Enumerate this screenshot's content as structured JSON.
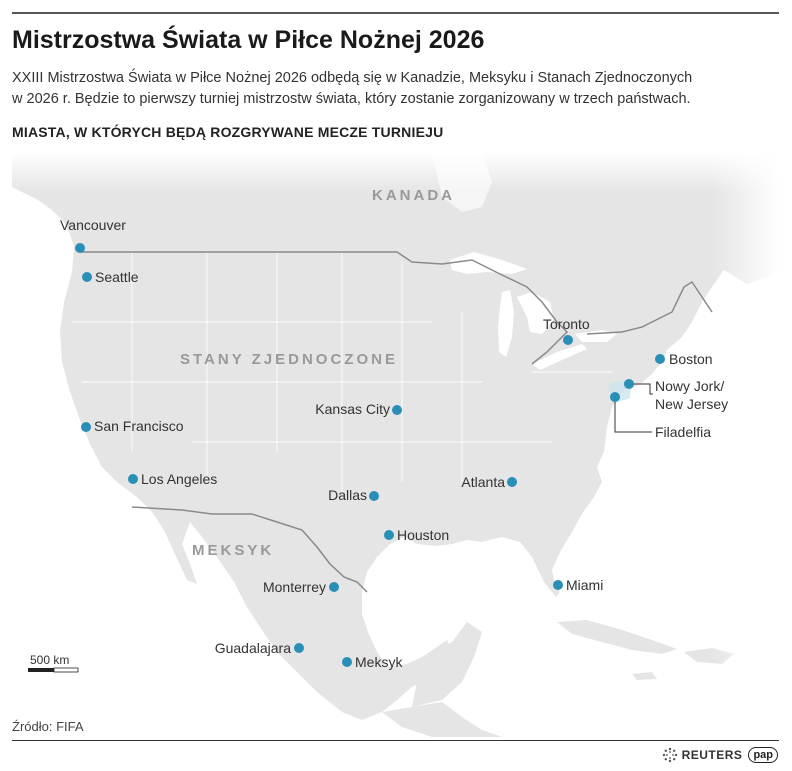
{
  "title": "Mistrzostwa Świata w Piłce Nożnej 2026",
  "description_line1": "XXIII Mistrzostwa Świata w Piłce Nożnej 2026 odbędą się w Kanadzie, Meksyku i Stanach Zjednoczonych",
  "description_line2": "w 2026 r. Będzie to pierwszy turniej mistrzostw świata, który zostanie zorganizowany w trzech państwach.",
  "subheading": "MIASTA, W KTÓRYCH BĘDĄ ROZGRYWANE MECZE TURNIEJU",
  "countries": {
    "canada": "KANADA",
    "usa": "STANY ZJEDNOCZONE",
    "mexico": "MEKSYK"
  },
  "cities": {
    "vancouver": "Vancouver",
    "seattle": "Seattle",
    "san_francisco": "San Francisco",
    "los_angeles": "Los Angeles",
    "kansas_city": "Kansas City",
    "dallas": "Dallas",
    "houston": "Houston",
    "atlanta": "Atlanta",
    "miami": "Miami",
    "toronto": "Toronto",
    "boston": "Boston",
    "new_york_line1": "Nowy Jork/",
    "new_york_line2": "New Jersey",
    "philadelphia": "Filadelfia",
    "monterrey": "Monterrey",
    "guadalajara": "Guadalajara",
    "mexico_city": "Meksyk"
  },
  "scale_label": "500 km",
  "source": "Źródło: FIFA",
  "logos": {
    "reuters": "REUTERS",
    "pap": "pap"
  },
  "colors": {
    "marker": "#2a8fb7",
    "land": "#e5e5e5",
    "water": "#ffffff",
    "border": "#8a8a8a"
  }
}
